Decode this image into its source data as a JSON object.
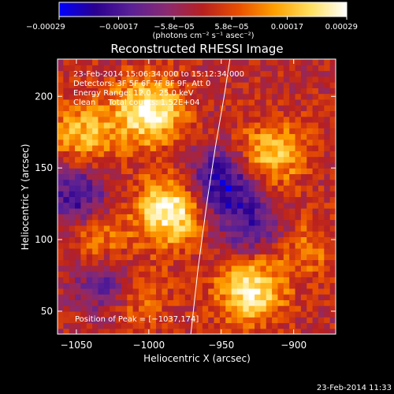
{
  "chart_data": {
    "type": "heatmap",
    "title": "Reconstructed RHESSI Image",
    "xlabel": "Heliocentric X (arcsec)",
    "ylabel": "Heliocentric Y (arcsec)",
    "xlim": [
      -1063,
      -871
    ],
    "ylim": [
      34,
      226
    ],
    "x_ticks": [
      -1050,
      -1000,
      -950,
      -900
    ],
    "y_ticks": [
      50,
      100,
      150,
      200
    ],
    "x_tick_labels": [
      "−1050",
      "−1000",
      "−950",
      "−900"
    ],
    "y_tick_labels": [
      "50",
      "100",
      "150",
      "200"
    ],
    "colorbar": {
      "min": -0.00029,
      "max": 0.00029,
      "ticks": [
        -0.00029,
        -0.00017,
        -5.8e-05,
        5.8e-05,
        0.00017,
        0.00029
      ],
      "tick_labels": [
        "−0.00029",
        "−0.00017",
        "−5.8e−05",
        "5.8e−05",
        "0.00017",
        "0.00029"
      ],
      "unit_label": "(photons cm⁻² s⁻¹ asec⁻²)",
      "colormap": [
        "#0000ff",
        "#2a0090",
        "#5a2096",
        "#8a2a70",
        "#b82020",
        "#e85000",
        "#ffa000",
        "#ffe060",
        "#ffffff"
      ]
    },
    "annotations": [
      "23-Feb-2014 15:06:34.000 to 15:12:34.000",
      "Detectors: 3F 5F 6F 7F 8F 9F, Att 0",
      "Energy Range: 12.0 - 25.0 keV",
      "Clean     Total counts: 1.52E+04"
    ],
    "peak_label": "Position of Peak = [−1037,174]",
    "limb_line": {
      "x": [
        -971,
        -966,
        -960,
        -954,
        -948,
        -944
      ],
      "y": [
        34,
        80,
        125,
        165,
        200,
        226
      ]
    },
    "sources": [
      {
        "x": -1000,
        "y": 190,
        "value": 0.00029
      },
      {
        "x": -985,
        "y": 120,
        "value": 0.00029
      },
      {
        "x": -930,
        "y": 65,
        "value": 0.00026
      },
      {
        "x": -1035,
        "y": 100,
        "value": 0.00014
      },
      {
        "x": -1045,
        "y": 175,
        "value": 0.00018
      },
      {
        "x": -915,
        "y": 160,
        "value": 0.0002
      },
      {
        "x": -1010,
        "y": 60,
        "value": 0.00012
      },
      {
        "x": -890,
        "y": 95,
        "value": 0.0001
      },
      {
        "x": -950,
        "y": 140,
        "value": -0.00024
      },
      {
        "x": -1050,
        "y": 130,
        "value": -0.0002
      },
      {
        "x": -1030,
        "y": 70,
        "value": -0.00018
      },
      {
        "x": -930,
        "y": 110,
        "value": -0.00016
      }
    ]
  },
  "stamp": "23-Feb-2014 11:33"
}
